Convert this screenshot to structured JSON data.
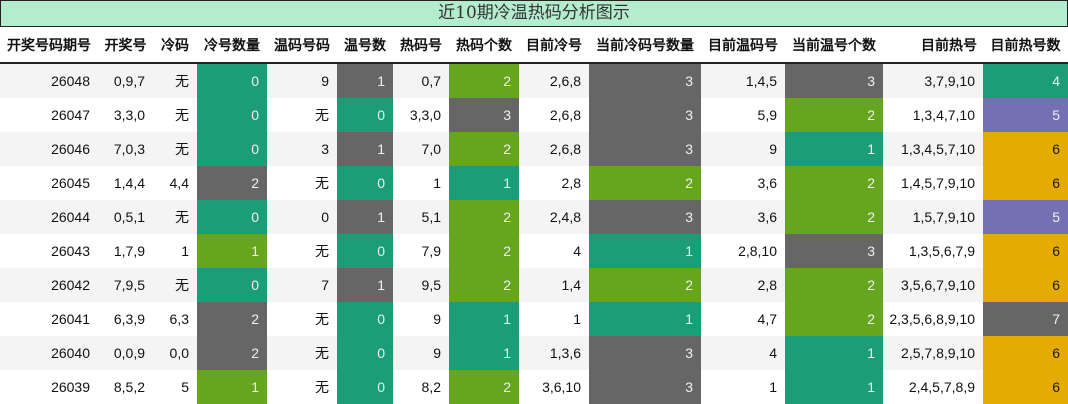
{
  "title": "近10期冷温热码分析图示",
  "columns": [
    "开奖号码期号",
    "开奖号",
    "冷码",
    "冷号数量",
    "温码号码",
    "温号数",
    "热码号",
    "热码个数",
    "目前冷号",
    "当前冷码号数量",
    "目前温码号",
    "当前温号个数",
    "目前热号",
    "目前热号数"
  ],
  "colors": {
    "teal": "#1b9e77",
    "gray": "#666666",
    "green": "#66a61e",
    "purple": "#7570b3",
    "gold": "#e6ab02",
    "title_bg": "#b4ecce"
  },
  "rows": [
    {
      "period": "26048",
      "draw": "0,9,7",
      "cold": "无",
      "cold_count": "0",
      "warm": "9",
      "warm_count": "1",
      "hot": "0,7",
      "hot_count": "2",
      "cur_cold": "2,6,8",
      "cur_cold_count": "3",
      "cur_warm": "1,4,5",
      "cur_warm_count": "3",
      "cur_hot": "3,7,9,10",
      "cur_hot_count": "4"
    },
    {
      "period": "26047",
      "draw": "3,3,0",
      "cold": "无",
      "cold_count": "0",
      "warm": "无",
      "warm_count": "0",
      "hot": "3,3,0",
      "hot_count": "3",
      "cur_cold": "2,6,8",
      "cur_cold_count": "3",
      "cur_warm": "5,9",
      "cur_warm_count": "2",
      "cur_hot": "1,3,4,7,10",
      "cur_hot_count": "5"
    },
    {
      "period": "26046",
      "draw": "7,0,3",
      "cold": "无",
      "cold_count": "0",
      "warm": "3",
      "warm_count": "1",
      "hot": "7,0",
      "hot_count": "2",
      "cur_cold": "2,6,8",
      "cur_cold_count": "3",
      "cur_warm": "9",
      "cur_warm_count": "1",
      "cur_hot": "1,3,4,5,7,10",
      "cur_hot_count": "6"
    },
    {
      "period": "26045",
      "draw": "1,4,4",
      "cold": "4,4",
      "cold_count": "2",
      "warm": "无",
      "warm_count": "0",
      "hot": "1",
      "hot_count": "1",
      "cur_cold": "2,8",
      "cur_cold_count": "2",
      "cur_warm": "3,6",
      "cur_warm_count": "2",
      "cur_hot": "1,4,5,7,9,10",
      "cur_hot_count": "6"
    },
    {
      "period": "26044",
      "draw": "0,5,1",
      "cold": "无",
      "cold_count": "0",
      "warm": "0",
      "warm_count": "1",
      "hot": "5,1",
      "hot_count": "2",
      "cur_cold": "2,4,8",
      "cur_cold_count": "3",
      "cur_warm": "3,6",
      "cur_warm_count": "2",
      "cur_hot": "1,5,7,9,10",
      "cur_hot_count": "5"
    },
    {
      "period": "26043",
      "draw": "1,7,9",
      "cold": "1",
      "cold_count": "1",
      "warm": "无",
      "warm_count": "0",
      "hot": "7,9",
      "hot_count": "2",
      "cur_cold": "4",
      "cur_cold_count": "1",
      "cur_warm": "2,8,10",
      "cur_warm_count": "3",
      "cur_hot": "1,3,5,6,7,9",
      "cur_hot_count": "6"
    },
    {
      "period": "26042",
      "draw": "7,9,5",
      "cold": "无",
      "cold_count": "0",
      "warm": "7",
      "warm_count": "1",
      "hot": "9,5",
      "hot_count": "2",
      "cur_cold": "1,4",
      "cur_cold_count": "2",
      "cur_warm": "2,8",
      "cur_warm_count": "2",
      "cur_hot": "3,5,6,7,9,10",
      "cur_hot_count": "6"
    },
    {
      "period": "26041",
      "draw": "6,3,9",
      "cold": "6,3",
      "cold_count": "2",
      "warm": "无",
      "warm_count": "0",
      "hot": "9",
      "hot_count": "1",
      "cur_cold": "1",
      "cur_cold_count": "1",
      "cur_warm": "4,7",
      "cur_warm_count": "2",
      "cur_hot": "2,3,5,6,8,9,10",
      "cur_hot_count": "7"
    },
    {
      "period": "26040",
      "draw": "0,0,9",
      "cold": "0,0",
      "cold_count": "2",
      "warm": "无",
      "warm_count": "0",
      "hot": "9",
      "hot_count": "1",
      "cur_cold": "1,3,6",
      "cur_cold_count": "3",
      "cur_warm": "4",
      "cur_warm_count": "1",
      "cur_hot": "2,5,7,8,9,10",
      "cur_hot_count": "6"
    },
    {
      "period": "26039",
      "draw": "8,5,2",
      "cold": "5",
      "cold_count": "1",
      "warm": "无",
      "warm_count": "0",
      "hot": "8,2",
      "hot_count": "2",
      "cur_cold": "3,6,10",
      "cur_cold_count": "3",
      "cur_warm": "1",
      "cur_warm_count": "1",
      "cur_hot": "2,4,5,7,8,9",
      "cur_hot_count": "6"
    }
  ]
}
